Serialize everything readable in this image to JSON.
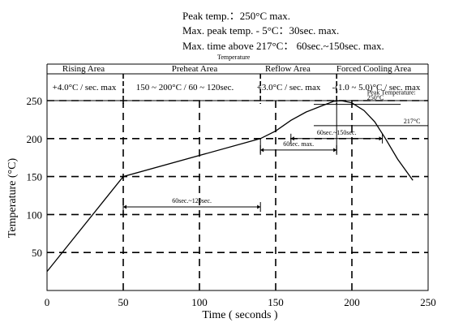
{
  "header_lines": [
    "Peak temp.：250°C max.",
    "Max. peak temp. - 5°C：30sec. max.",
    "Max. time above 217°C： 60sec.~150sec. max."
  ],
  "zones": [
    {
      "name": "Rising Area",
      "condition": "+4.0°C / sec. max"
    },
    {
      "name": "Preheat Area",
      "condition": "150 ~ 200°C / 60 ~ 120sec."
    },
    {
      "name": "Reflow Area",
      "condition": "+3.0°C  / sec. max"
    },
    {
      "name": "Forced Cooling Area",
      "condition": "-(1.0 ~ 5.0)°C / sec. max"
    }
  ],
  "zone_boundaries": [
    0,
    50,
    140,
    190,
    250
  ],
  "chart_data": {
    "type": "line",
    "title": "Temperature",
    "xlabel": "Time ( seconds )",
    "ylabel": "Temperature (°C)",
    "xlim": [
      0,
      250
    ],
    "ylim": [
      0,
      250
    ],
    "xticks": [
      0,
      50,
      100,
      150,
      200,
      250
    ],
    "yticks": [
      50,
      100,
      150,
      200,
      250
    ],
    "grid": true,
    "series": [
      {
        "x": [
          0,
          50,
          140,
          150,
          160,
          170,
          180,
          188,
          193,
          200,
          208,
          215,
          222,
          230,
          240
        ],
        "y": [
          25,
          150,
          200,
          210,
          224,
          235,
          243,
          249,
          250,
          247,
          237,
          222,
          200,
          173,
          145
        ]
      }
    ],
    "reference_lines": [
      {
        "label": "217°C",
        "y": 217,
        "x_from": 175,
        "x_to": 255
      },
      {
        "label": "",
        "y": 245,
        "x_from": 175,
        "x_to": 232
      }
    ],
    "annotations": [
      {
        "text": "60sec.~120sec.",
        "x_from": 50,
        "x_to": 140,
        "y": 110
      },
      {
        "text": "60sec. max.",
        "x_from": 140,
        "x_to": 190,
        "y": 185
      },
      {
        "text": "60sec.~150sec.",
        "x_from": 160,
        "x_to": 220,
        "y": 200
      },
      {
        "text": "Peak Temperature:",
        "x": 210,
        "y": 258
      },
      {
        "text": "250°C",
        "x": 210,
        "y": 251
      },
      {
        "text": "217°C",
        "x": 234,
        "y": 220
      }
    ]
  }
}
